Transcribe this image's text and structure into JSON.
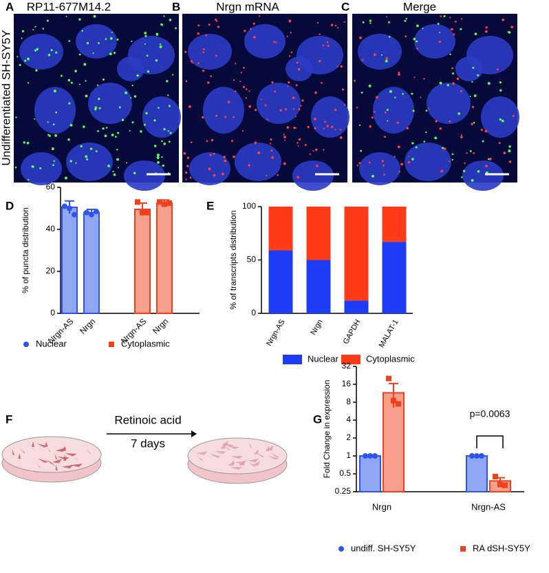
{
  "panel_labels": [
    "A",
    "B",
    "C",
    "D",
    "E",
    "F",
    "G"
  ],
  "image_titles": [
    "RP11-677M14.2",
    "Nrgn mRNA",
    "Merge"
  ],
  "row_label": "Undifferentiated SH-SY5Y",
  "schematic": {
    "treatment": "Retinoic acid",
    "duration": "7 days"
  },
  "chart_data": [
    {
      "type": "bar",
      "ylabel": "% of puncta distribution",
      "categories": [
        "Nrgn-AS",
        "Nrgn",
        "Nrgn-AS",
        "Nrgn"
      ],
      "series": [
        {
          "name": "Nuclear",
          "color": "#2f54eb",
          "fill": "#8fa6f2",
          "values": [
            50.5,
            48,
            null,
            null
          ],
          "errors": [
            3,
            1.5,
            null,
            null
          ],
          "points": [
            [
              51,
              50,
              47
            ],
            [
              48,
              47,
              48.5
            ],
            null,
            null
          ]
        },
        {
          "name": "Cytoplasmic",
          "color": "#f0401c",
          "fill": "#f7a08c",
          "values": [
            null,
            null,
            49.5,
            52.5
          ],
          "errors": [
            null,
            null,
            3,
            1.5
          ],
          "points": [
            null,
            null,
            [
              53,
              48,
              48
            ],
            [
              53,
              52,
              52.5
            ]
          ]
        }
      ],
      "ylim": [
        0,
        60
      ],
      "yticks": [
        0,
        20,
        40,
        60
      ]
    },
    {
      "type": "stacked_bar",
      "ylabel": "% of transcripts distribution",
      "categories": [
        "Nrgn-AS",
        "Nrgn",
        "GAPDH",
        "MALAT-1"
      ],
      "series": [
        {
          "name": "Nuclear",
          "color": "#1e3cf5",
          "values": [
            59,
            50,
            12,
            67
          ]
        },
        {
          "name": "Cytoplasmic",
          "color": "#ff3b1a",
          "values": [
            41,
            50,
            88,
            33
          ]
        }
      ],
      "ylim": [
        0,
        100
      ],
      "yticks": [
        0,
        50,
        100
      ]
    },
    {
      "type": "bar",
      "ylabel": "Fold Change in expression",
      "log_scale": true,
      "log_base": 2,
      "categories": [
        "Nrgn",
        "Nrgn-AS"
      ],
      "series": [
        {
          "name": "undiff. SH-SY5Y",
          "color": "#2f54eb",
          "fill": "#8fa6f2",
          "values": [
            1,
            1
          ],
          "errors": [
            0,
            0
          ],
          "points": [
            [
              1,
              1,
              1
            ],
            [
              1,
              1,
              1
            ]
          ]
        },
        {
          "name": "RA dSH-SY5Y",
          "color": "#f0401c",
          "fill": "#f7a08c",
          "values": [
            11.5,
            0.38
          ],
          "errors": [
            5,
            0.05
          ],
          "points": [
            [
              20,
              8.5,
              7.5
            ],
            [
              0.45,
              0.33,
              0.32
            ]
          ]
        }
      ],
      "annotation": "p=0.0063",
      "ylim": [
        0.25,
        32
      ],
      "yticks": [
        0.25,
        0.5,
        1,
        2,
        4,
        8,
        16,
        32
      ]
    }
  ]
}
